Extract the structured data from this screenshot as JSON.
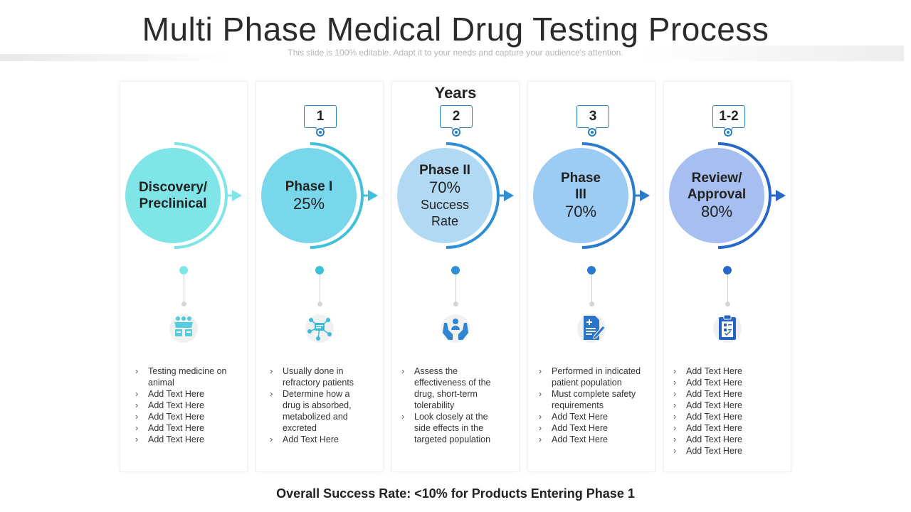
{
  "title": "Multi Phase Medical Drug Testing Process",
  "subtitle": "This slide is 100% editable. Adapt it to your needs and capture your audience's attention.",
  "years_label": "Years",
  "footer": "Overall Success Rate: <10% for Products Entering Phase 1",
  "phases": [
    {
      "title": "Discovery/ Preclinical",
      "value": "",
      "sub": "",
      "year": "",
      "color": "#7fe5e6",
      "accent": "#7fe5e6",
      "icon": "people-group-icon",
      "bullets": [
        "Testing medicine on animal",
        "Add Text Here",
        "Add Text Here",
        "Add Text Here",
        "Add Text Here",
        "Add Text Here"
      ]
    },
    {
      "title": "Phase I",
      "value": "25%",
      "sub": "",
      "year": "1",
      "color": "#78d7ea",
      "accent": "#3fc2d9",
      "icon": "molecule-network-icon",
      "bullets": [
        "Usually done in refractory patients",
        "Determine how a drug is absorbed, metabolized and excreted",
        "Add Text Here"
      ]
    },
    {
      "title": "Phase II",
      "value": "70%",
      "sub": "Success Rate",
      "year": "2",
      "color": "#b2d9f4",
      "accent": "#2f8fd6",
      "icon": "hands-person-icon",
      "bullets": [
        "Assess the effectiveness of the drug, short-term tolerability",
        "Look closely at the side effects in the targeted population"
      ]
    },
    {
      "title": "Phase III",
      "value": "70%",
      "sub": "",
      "year": "3",
      "color": "#9ccbf3",
      "accent": "#2a7ccc",
      "icon": "medical-report-icon",
      "bullets": [
        "Performed in indicated patient population",
        "Must complete safety requirements",
        "Add Text Here",
        "Add Text Here",
        "Add Text Here"
      ]
    },
    {
      "title": "Review/ Approval",
      "value": "80%",
      "sub": "",
      "year": "1-2",
      "color": "#a6bff0",
      "accent": "#2868c8",
      "icon": "clipboard-checklist-icon",
      "bullets": [
        "Add Text Here",
        "Add Text Here",
        "Add Text Here",
        "Add Text Here",
        "Add Text Here",
        "Add Text Here",
        "Add Text Here",
        "Add Text Here"
      ]
    }
  ]
}
